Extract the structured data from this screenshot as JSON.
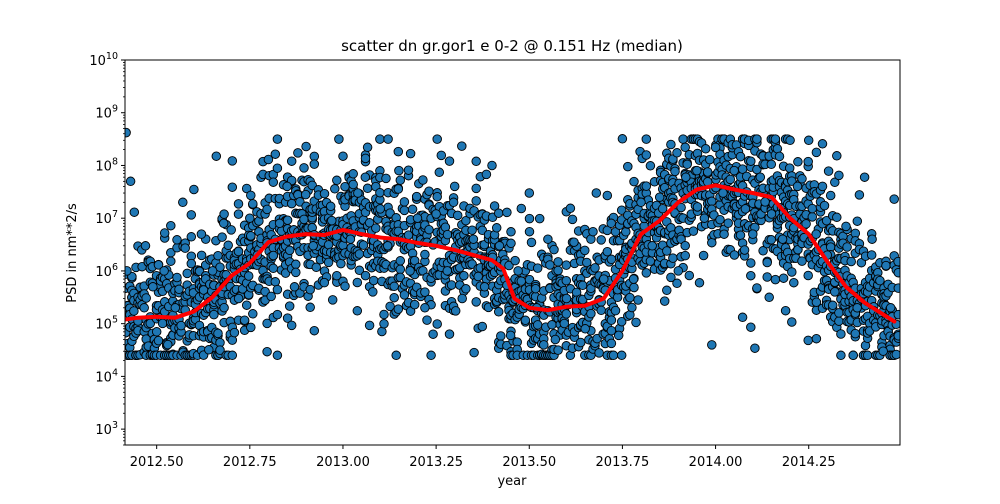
{
  "chart_data": {
    "type": "scatter",
    "title": "scatter dn gr.gor1 e 0-2 @ 0.151 Hz (median)",
    "xlabel": "year",
    "ylabel": "PSD in nm**2/s",
    "xlim": [
      2012.415,
      2014.495
    ],
    "ylim": [
      500,
      10000000000
    ],
    "yscale": "log",
    "grid": false,
    "x_ticks": [
      2012.5,
      2012.75,
      2013.0,
      2013.25,
      2013.5,
      2013.75,
      2014.0,
      2014.25
    ],
    "x_tick_labels": [
      "2012.50",
      "2012.75",
      "2013.00",
      "2013.25",
      "2013.50",
      "2013.75",
      "2014.00",
      "2014.25"
    ],
    "y_ticks": [
      1000,
      10000,
      100000,
      1000000,
      10000000,
      100000000,
      1000000000,
      10000000000
    ],
    "y_tick_exponents": [
      "3",
      "4",
      "5",
      "6",
      "7",
      "8",
      "9",
      "10"
    ],
    "y_tick_base": "10",
    "colors": {
      "points": "#1f77b4",
      "point_edge": "#000000",
      "median": "#ff0000"
    },
    "median_curve": {
      "x": [
        2012.415,
        2012.45,
        2012.5,
        2012.55,
        2012.6,
        2012.65,
        2012.7,
        2012.75,
        2012.8,
        2012.85,
        2012.9,
        2012.95,
        2013.0,
        2013.05,
        2013.1,
        2013.15,
        2013.2,
        2013.25,
        2013.3,
        2013.35,
        2013.4,
        2013.43,
        2013.46,
        2013.5,
        2013.55,
        2013.6,
        2013.65,
        2013.7,
        2013.75,
        2013.8,
        2013.85,
        2013.9,
        2013.95,
        2014.0,
        2014.05,
        2014.1,
        2014.15,
        2014.2,
        2014.25,
        2014.3,
        2014.35,
        2014.4,
        2014.45,
        2014.48
      ],
      "y": [
        120000,
        130000,
        135000,
        130000,
        170000,
        320000,
        800000,
        1400000,
        3500000,
        4500000,
        5000000,
        4800000,
        6000000,
        5000000,
        4300000,
        4000000,
        3400000,
        3000000,
        2500000,
        2000000,
        1600000,
        1100000,
        300000,
        200000,
        180000,
        210000,
        220000,
        300000,
        1000000,
        5000000,
        9000000,
        20000000,
        35000000,
        42000000,
        35000000,
        30000000,
        25000000,
        10000000,
        5000000,
        1500000,
        500000,
        250000,
        150000,
        110000
      ]
    },
    "scatter_points": {
      "x": [
        2012.418,
        2012.42,
        2012.43,
        2012.44,
        2012.46,
        2012.47,
        2012.49,
        2012.5,
        2012.52,
        2012.53,
        2012.55,
        2012.57,
        2012.6,
        2012.62,
        2012.64,
        2012.65,
        2012.66,
        2012.68,
        2012.7,
        2012.72,
        2012.75,
        2012.77,
        2012.8,
        2012.83,
        2012.85,
        2012.87,
        2012.9,
        2012.92,
        2012.95,
        2012.97,
        2013.0,
        2013.02,
        2013.04,
        2013.06,
        2013.08,
        2013.1,
        2013.12,
        2013.15,
        2013.18,
        2013.2,
        2013.22,
        2013.25,
        2013.28,
        2013.3,
        2013.32,
        2013.35,
        2013.38,
        2013.4,
        2013.42,
        2013.45,
        2013.47,
        2013.5,
        2013.52,
        2013.55,
        2013.57,
        2013.6,
        2013.62,
        2013.65,
        2013.68,
        2013.7,
        2013.72,
        2013.74,
        2013.75,
        2013.78,
        2013.8,
        2013.83,
        2013.85,
        2013.88,
        2013.9,
        2013.92,
        2013.95,
        2013.97,
        2014.0,
        2014.02,
        2014.05,
        2014.08,
        2014.1,
        2014.12,
        2014.15,
        2014.18,
        2014.2,
        2014.22,
        2014.25,
        2014.27,
        2014.3,
        2014.32,
        2014.35,
        2014.38,
        2014.4,
        2014.42,
        2014.45,
        2014.47,
        2014.49
      ],
      "y": [
        420000000,
        1000000,
        50000000,
        13000000,
        2500000,
        3000000,
        500000,
        70000,
        1000000,
        40000,
        200000,
        20000000,
        35000000,
        5000000,
        32000,
        1000000,
        150000000,
        8000000,
        6000000,
        300000,
        10000000,
        2000000,
        130000000,
        8000000,
        40000000,
        500000,
        28000000,
        3000000,
        600000,
        9000000,
        150000000,
        4000000,
        30000000,
        60000000,
        400000,
        15000000,
        3000000,
        80000000,
        1000000,
        10000000,
        200000,
        12000000,
        1000000,
        40000000,
        300000,
        4000000,
        500000,
        100000000,
        3000000,
        60000,
        1000000,
        30000000,
        200000,
        4000000,
        50000,
        300000,
        3500000,
        80000,
        30000000,
        700000,
        8000000,
        60000,
        320000000,
        700000,
        20000000,
        3000000,
        25000000,
        250000000,
        1000000,
        60000000,
        80000000,
        10000000,
        220000000,
        30000000,
        80000000,
        15000000,
        5000000,
        60000000,
        12000000,
        4000000,
        300000000,
        40000000,
        300000000,
        5000000,
        2000000,
        400000,
        7000000,
        200000,
        60000000,
        4000000,
        30000,
        200000,
        1500000
      ]
    }
  }
}
